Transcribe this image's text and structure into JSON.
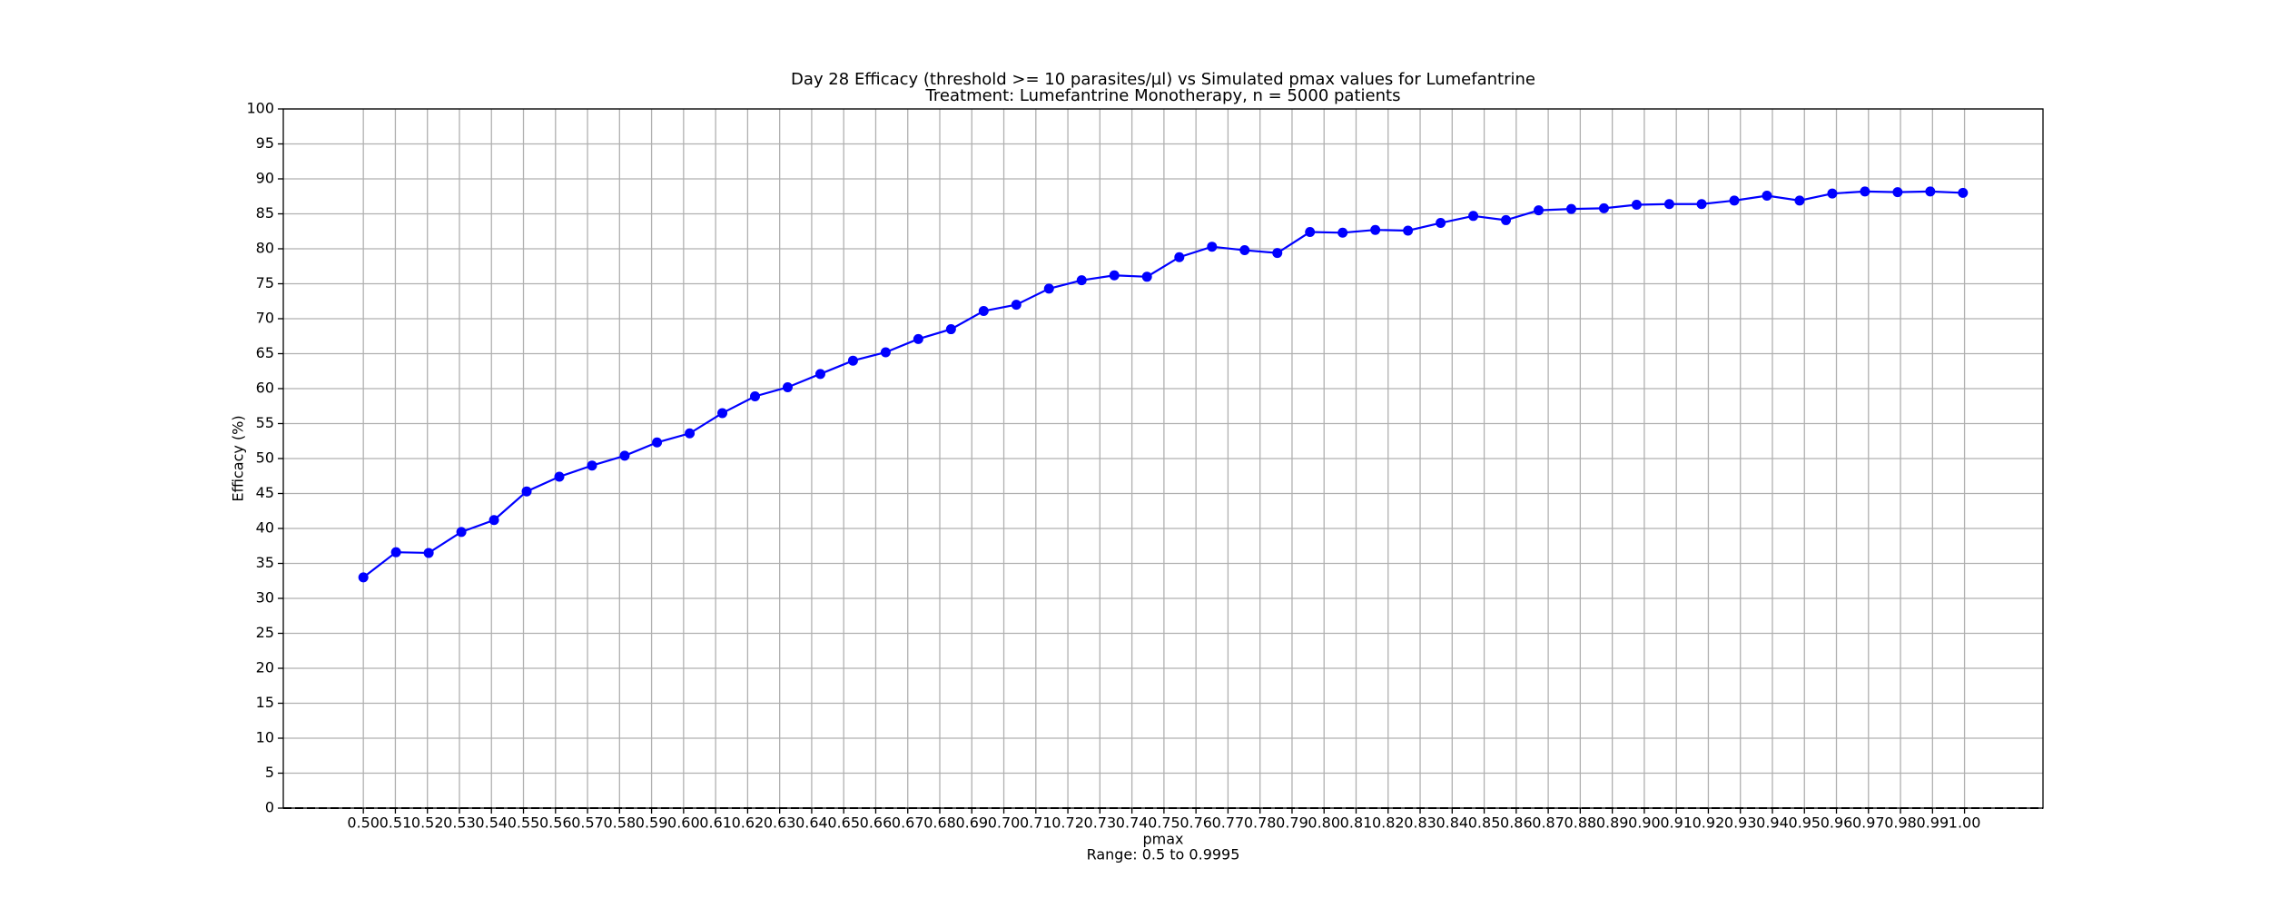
{
  "chart_data": {
    "type": "line",
    "title": "Day 28 Efficacy (threshold >= 10 parasites/µl) vs Simulated pmax values for Lumefantrine",
    "subtitle": "Treatment: Lumefantrine Monotherapy, n = 5000 patients",
    "x_label": "pmax",
    "x_note": "Range: 0.5 to 0.9995",
    "y_label": "Efficacy (%)",
    "x": [
      0.5,
      0.5102,
      0.5204,
      0.5306,
      0.5408,
      0.551,
      0.5612,
      0.5714,
      0.5816,
      0.5917,
      0.6019,
      0.6121,
      0.6223,
      0.6325,
      0.6427,
      0.6529,
      0.6631,
      0.6733,
      0.6835,
      0.6937,
      0.7039,
      0.7141,
      0.7243,
      0.7345,
      0.7447,
      0.7548,
      0.765,
      0.7752,
      0.7854,
      0.7956,
      0.8058,
      0.816,
      0.8262,
      0.8364,
      0.8466,
      0.8568,
      0.867,
      0.8772,
      0.8874,
      0.8976,
      0.9078,
      0.9179,
      0.9281,
      0.9383,
      0.9485,
      0.9587,
      0.9689,
      0.9791,
      0.9893,
      0.9995
    ],
    "series": [
      {
        "color": "#0000ff",
        "values": [
          33.0,
          36.6,
          36.5,
          39.5,
          41.2,
          45.3,
          47.4,
          49.0,
          50.4,
          52.3,
          53.6,
          56.5,
          58.9,
          60.2,
          62.1,
          64.0,
          65.2,
          67.1,
          68.5,
          71.1,
          72.0,
          74.3,
          75.5,
          76.2,
          76.0,
          78.8,
          80.3,
          79.8,
          79.4,
          82.4,
          82.3,
          82.7,
          82.6,
          83.7,
          84.7,
          84.1,
          85.5,
          85.7,
          85.8,
          86.3,
          86.4,
          86.4,
          86.9,
          87.6,
          86.9,
          87.9,
          88.2,
          88.1,
          88.2,
          88.0
        ]
      }
    ],
    "hline": 0,
    "xlim": [
      0.475,
      1.0245
    ],
    "ylim": [
      0,
      100
    ],
    "xticks": [
      {
        "value": 0.5,
        "label": "0.50"
      },
      {
        "value": 0.51,
        "label": "0.51"
      },
      {
        "value": 0.52,
        "label": "0.52"
      },
      {
        "value": 0.53,
        "label": "0.53"
      },
      {
        "value": 0.54,
        "label": "0.54"
      },
      {
        "value": 0.55,
        "label": "0.55"
      },
      {
        "value": 0.56,
        "label": "0.56"
      },
      {
        "value": 0.57,
        "label": "0.57"
      },
      {
        "value": 0.58,
        "label": "0.58"
      },
      {
        "value": 0.59,
        "label": "0.59"
      },
      {
        "value": 0.6,
        "label": "0.60"
      },
      {
        "value": 0.61,
        "label": "0.61"
      },
      {
        "value": 0.62,
        "label": "0.62"
      },
      {
        "value": 0.63,
        "label": "0.63"
      },
      {
        "value": 0.64,
        "label": "0.64"
      },
      {
        "value": 0.65,
        "label": "0.65"
      },
      {
        "value": 0.66,
        "label": "0.66"
      },
      {
        "value": 0.67,
        "label": "0.67"
      },
      {
        "value": 0.68,
        "label": "0.68"
      },
      {
        "value": 0.69,
        "label": "0.69"
      },
      {
        "value": 0.7,
        "label": "0.70"
      },
      {
        "value": 0.71,
        "label": "0.71"
      },
      {
        "value": 0.72,
        "label": "0.72"
      },
      {
        "value": 0.73,
        "label": "0.73"
      },
      {
        "value": 0.74,
        "label": "0.74"
      },
      {
        "value": 0.75,
        "label": "0.75"
      },
      {
        "value": 0.76,
        "label": "0.76"
      },
      {
        "value": 0.77,
        "label": "0.77"
      },
      {
        "value": 0.78,
        "label": "0.78"
      },
      {
        "value": 0.79,
        "label": "0.79"
      },
      {
        "value": 0.8,
        "label": "0.80"
      },
      {
        "value": 0.81,
        "label": "0.81"
      },
      {
        "value": 0.82,
        "label": "0.82"
      },
      {
        "value": 0.83,
        "label": "0.83"
      },
      {
        "value": 0.84,
        "label": "0.84"
      },
      {
        "value": 0.85,
        "label": "0.85"
      },
      {
        "value": 0.86,
        "label": "0.86"
      },
      {
        "value": 0.87,
        "label": "0.87"
      },
      {
        "value": 0.88,
        "label": "0.88"
      },
      {
        "value": 0.89,
        "label": "0.89"
      },
      {
        "value": 0.9,
        "label": "0.90"
      },
      {
        "value": 0.91,
        "label": "0.91"
      },
      {
        "value": 0.92,
        "label": "0.92"
      },
      {
        "value": 0.93,
        "label": "0.93"
      },
      {
        "value": 0.94,
        "label": "0.94"
      },
      {
        "value": 0.95,
        "label": "0.95"
      },
      {
        "value": 0.96,
        "label": "0.96"
      },
      {
        "value": 0.97,
        "label": "0.97"
      },
      {
        "value": 0.98,
        "label": "0.98"
      },
      {
        "value": 0.99,
        "label": "0.99"
      },
      {
        "value": 1.0,
        "label": "1.00"
      }
    ],
    "yticks": [
      0,
      5,
      10,
      15,
      20,
      25,
      30,
      35,
      40,
      45,
      50,
      55,
      60,
      65,
      70,
      75,
      80,
      85,
      90,
      95,
      100
    ],
    "grid": true
  }
}
